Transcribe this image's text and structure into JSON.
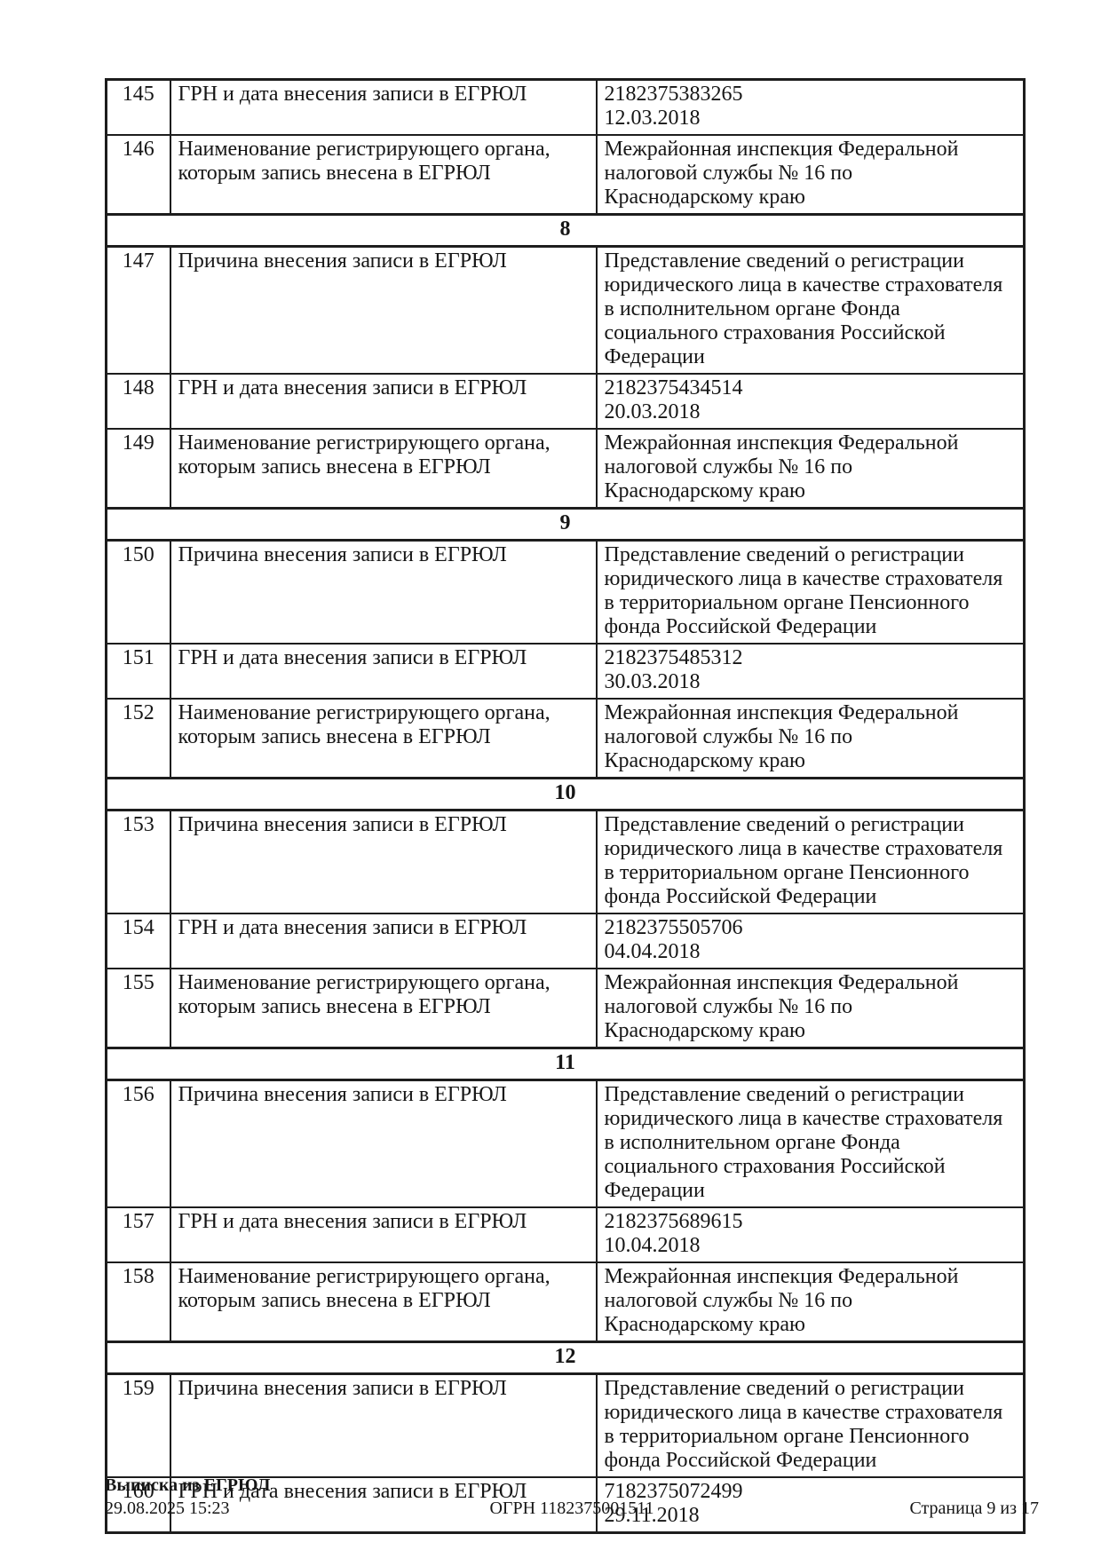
{
  "document": {
    "rows": [
      {
        "kind": "field",
        "num": "145",
        "label": "ГРН и дата внесения записи в ЕГРЮЛ",
        "value_lines": [
          "2182375383265",
          "12.03.2018"
        ]
      },
      {
        "kind": "field",
        "num": "146",
        "label": "Наименование регистрирующего органа, которым запись внесена в ЕГРЮЛ",
        "value_lines": [
          "Межрайонная инспекция Федеральной",
          "налоговой службы № 16 по",
          "Краснодарскому краю"
        ]
      },
      {
        "kind": "section",
        "num": "8"
      },
      {
        "kind": "field",
        "num": "147",
        "label": "Причина внесения записи в ЕГРЮЛ",
        "value_lines": [
          "Представление сведений о регистрации",
          "юридического лица в качестве страхователя",
          "в исполнительном органе Фонда",
          "социального страхования Российской",
          "Федерации"
        ]
      },
      {
        "kind": "field",
        "num": "148",
        "label": "ГРН и дата внесения записи в ЕГРЮЛ",
        "value_lines": [
          "2182375434514",
          "20.03.2018"
        ]
      },
      {
        "kind": "field",
        "num": "149",
        "label": "Наименование регистрирующего органа, которым запись внесена в ЕГРЮЛ",
        "value_lines": [
          "Межрайонная инспекция Федеральной",
          "налоговой службы № 16 по",
          "Краснодарскому краю"
        ]
      },
      {
        "kind": "section",
        "num": "9"
      },
      {
        "kind": "field",
        "num": "150",
        "label": "Причина внесения записи в ЕГРЮЛ",
        "value_lines": [
          "Представление сведений о регистрации",
          "юридического лица в качестве страхователя",
          "в территориальном органе Пенсионного",
          "фонда Российской Федерации"
        ]
      },
      {
        "kind": "field",
        "num": "151",
        "label": "ГРН и дата внесения записи в ЕГРЮЛ",
        "value_lines": [
          "2182375485312",
          "30.03.2018"
        ]
      },
      {
        "kind": "field",
        "num": "152",
        "label": "Наименование регистрирующего органа, которым запись внесена в ЕГРЮЛ",
        "value_lines": [
          "Межрайонная инспекция Федеральной",
          "налоговой службы № 16 по",
          "Краснодарскому краю"
        ]
      },
      {
        "kind": "section",
        "num": "10"
      },
      {
        "kind": "field",
        "num": "153",
        "label": "Причина внесения записи в ЕГРЮЛ",
        "value_lines": [
          "Представление сведений о регистрации",
          "юридического лица в качестве страхователя",
          "в территориальном органе Пенсионного",
          "фонда Российской Федерации"
        ]
      },
      {
        "kind": "field",
        "num": "154",
        "label": "ГРН и дата внесения записи в ЕГРЮЛ",
        "value_lines": [
          "2182375505706",
          "04.04.2018"
        ]
      },
      {
        "kind": "field",
        "num": "155",
        "label": "Наименование регистрирующего органа, которым запись внесена в ЕГРЮЛ",
        "value_lines": [
          "Межрайонная инспекция Федеральной",
          "налоговой службы № 16 по",
          "Краснодарскому краю"
        ]
      },
      {
        "kind": "section",
        "num": "11"
      },
      {
        "kind": "field",
        "num": "156",
        "label": "Причина внесения записи в ЕГРЮЛ",
        "value_lines": [
          "Представление сведений о регистрации",
          "юридического лица в качестве страхователя",
          "в исполнительном органе Фонда",
          "социального страхования Российской",
          "Федерации"
        ]
      },
      {
        "kind": "field",
        "num": "157",
        "label": "ГРН и дата внесения записи в ЕГРЮЛ",
        "value_lines": [
          "2182375689615",
          "10.04.2018"
        ]
      },
      {
        "kind": "field",
        "num": "158",
        "label": "Наименование регистрирующего органа, которым запись внесена в ЕГРЮЛ",
        "value_lines": [
          "Межрайонная инспекция Федеральной",
          "налоговой службы № 16 по",
          "Краснодарскому краю"
        ]
      },
      {
        "kind": "section",
        "num": "12"
      },
      {
        "kind": "field",
        "num": "159",
        "label": "Причина внесения записи в ЕГРЮЛ",
        "value_lines": [
          "Представление сведений о регистрации",
          "юридического лица в качестве страхователя",
          "в территориальном органе Пенсионного",
          "фонда Российской Федерации"
        ]
      },
      {
        "kind": "field",
        "num": "160",
        "label": "ГРН и дата внесения записи в ЕГРЮЛ",
        "value_lines": [
          "7182375072499",
          "29.11.2018"
        ]
      }
    ]
  },
  "footer": {
    "doc_title": "Выписка из ЕГРЮЛ",
    "generated": "29.08.2025 15:23",
    "ogrn": "ОГРН 1182375001511",
    "page": "Страница 9 из 17"
  }
}
